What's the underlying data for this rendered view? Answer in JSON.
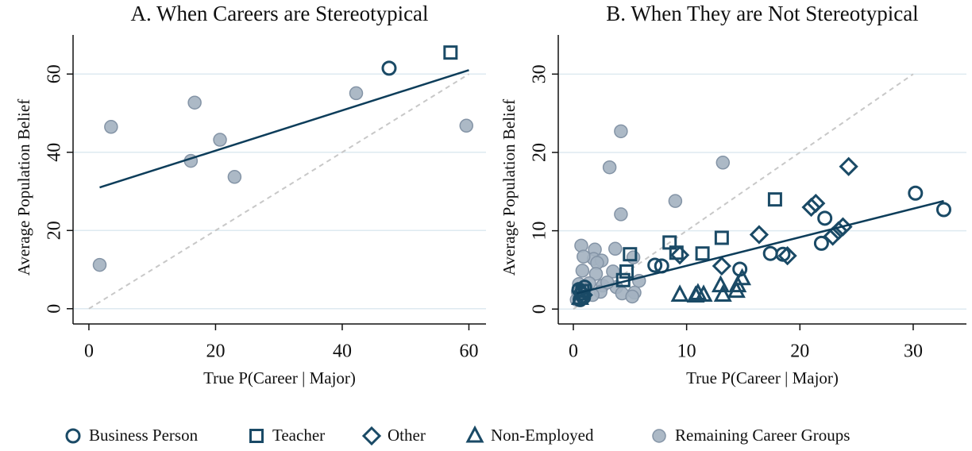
{
  "chart_data": [
    {
      "type": "scatter",
      "title": "A. When Careers are Stereotypical",
      "xlabel": "True P(Career | Major)",
      "ylabel": "Average Population Belief",
      "xlim": [
        -2.5,
        62.7
      ],
      "ylim": [
        -3.9,
        70
      ],
      "xticks": [
        0,
        20,
        40,
        60
      ],
      "yticks": [
        0,
        20,
        40,
        60
      ],
      "grid": true,
      "series": [
        {
          "marker": "circle",
          "color": "#1a4a66",
          "x": [
            47.4
          ],
          "values": [
            61.5
          ]
        },
        {
          "marker": "square",
          "color": "#1a4a66",
          "x": [
            57.1
          ],
          "values": [
            65.5
          ]
        },
        {
          "marker": "dot",
          "color": "#a3b1c0",
          "x": [
            1.7,
            3.5,
            16.1,
            16.7,
            20.7,
            23,
            42.2,
            59.6
          ],
          "values": [
            11.2,
            46.5,
            37.8,
            52.7,
            43.2,
            33.7,
            55.1,
            46.8
          ]
        }
      ],
      "fit_line": {
        "x": [
          1.7,
          60
        ],
        "y": [
          31,
          61
        ],
        "color": "#0d3d5a"
      },
      "diagonal": {
        "x": [
          0,
          60
        ],
        "y": [
          0,
          60
        ],
        "color": "#c8c8c8"
      }
    },
    {
      "type": "scatter",
      "title": "B. When They are Not Stereotypical",
      "xlabel": "True P(Career | Major)",
      "ylabel": "Average Population Belief",
      "xlim": [
        -1.33,
        34.7
      ],
      "ylim": [
        -1.9,
        35
      ],
      "xticks": [
        0,
        10,
        20,
        30
      ],
      "yticks": [
        0,
        10,
        20,
        30
      ],
      "grid": true,
      "series": [
        {
          "name": "Remaining Career Groups",
          "marker": "dot",
          "color": "#a3b1c0",
          "x": [
            4.2,
            13.2,
            3.2,
            9,
            4.2,
            0.7,
            1.9,
            3.7,
            1.8,
            2.5,
            0.9,
            2.1,
            5.3,
            5.8,
            3.5,
            0.8,
            2,
            2.6,
            3.8,
            4.3,
            5.4,
            5.2,
            2.4,
            1.4,
            1.1,
            0.3,
            0.4,
            1.7,
            3,
            0.5
          ],
          "values": [
            22.7,
            18.7,
            18.1,
            13.8,
            12.1,
            8.1,
            7.6,
            7.7,
            6.4,
            6.2,
            6.7,
            5.9,
            6.6,
            3.6,
            4.8,
            4.9,
            4.5,
            3,
            2.8,
            2,
            2.1,
            1.6,
            2.2,
            3.3,
            2.5,
            1.2,
            2.2,
            1.8,
            3.4,
            3.2
          ]
        },
        {
          "name": "Business Person",
          "marker": "circle",
          "color": "#1a4a66",
          "x": [
            30.2,
            32.7,
            22.2,
            21.9,
            17.4,
            18.5,
            14.7,
            7.2,
            7.8,
            0.5,
            0.7,
            0.9,
            1,
            0.6
          ],
          "values": [
            14.8,
            12.7,
            11.6,
            8.4,
            7.1,
            7,
            5.1,
            5.6,
            5.5,
            2.5,
            2,
            1.5,
            2.8,
            1.2
          ]
        },
        {
          "name": "Teacher",
          "marker": "square",
          "color": "#1a4a66",
          "x": [
            17.8,
            8.5,
            13.1,
            11.4,
            9.1,
            5,
            4.7,
            4.4,
            0.8
          ],
          "values": [
            14,
            8.5,
            9.1,
            7.1,
            7.2,
            7,
            4.8,
            3.7,
            2.3
          ]
        },
        {
          "name": "Other",
          "marker": "diamond",
          "color": "#1a4a66",
          "x": [
            24.3,
            21.4,
            21,
            23.8,
            23.4,
            22.9,
            16.4,
            18.9,
            13.1,
            9.4,
            0.9
          ],
          "values": [
            18.2,
            13.5,
            13,
            10.5,
            10,
            9.3,
            9.5,
            6.8,
            5.5,
            6.9,
            1.8
          ]
        },
        {
          "name": "Non-Employed",
          "marker": "triangle",
          "color": "#1a4a66",
          "x": [
            9.4,
            10.8,
            11,
            11.5,
            13,
            13.2,
            14.4,
            14.5,
            14.9,
            0.6
          ],
          "values": [
            1.8,
            1.7,
            2,
            1.8,
            3,
            1.8,
            2.3,
            3,
            3.9,
            1.4
          ]
        }
      ],
      "fit_line": {
        "x": [
          0.3,
          32.7
        ],
        "y": [
          2,
          13.8
        ],
        "color": "#0d3d5a"
      },
      "diagonal": {
        "x": [
          0,
          30
        ],
        "y": [
          0,
          30
        ],
        "color": "#c8c8c8"
      }
    }
  ]
}
